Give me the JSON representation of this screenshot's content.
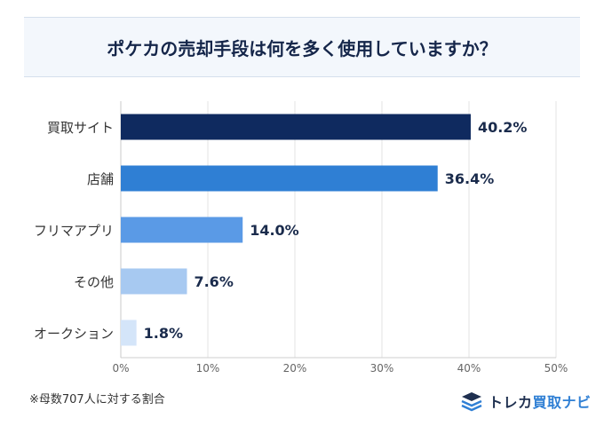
{
  "title": "ポケカの売却手段は何を多く使用していますか？",
  "note": "※母数707人に対する割合",
  "logo": {
    "brand": "トレカ",
    "accent": "買取ナビ",
    "icon": "stacked-cards-logo-icon"
  },
  "chart_data": {
    "type": "bar",
    "orientation": "horizontal",
    "categories": [
      "買取サイト",
      "店舗",
      "フリマアプリ",
      "その他",
      "オークション"
    ],
    "values": [
      40.2,
      36.4,
      14.0,
      7.6,
      1.8
    ],
    "value_labels": [
      "40.2%",
      "36.4%",
      "14.0%",
      "7.6%",
      "1.8%"
    ],
    "colors": [
      "#0f2a5f",
      "#2f7fd4",
      "#5a9ae6",
      "#a7c9f1",
      "#d4e5f9"
    ],
    "xlim": [
      0,
      50
    ],
    "xticks": [
      0,
      10,
      20,
      30,
      40,
      50
    ],
    "xtick_labels": [
      "0%",
      "10%",
      "20%",
      "30%",
      "40%",
      "50%"
    ],
    "grid": true
  }
}
